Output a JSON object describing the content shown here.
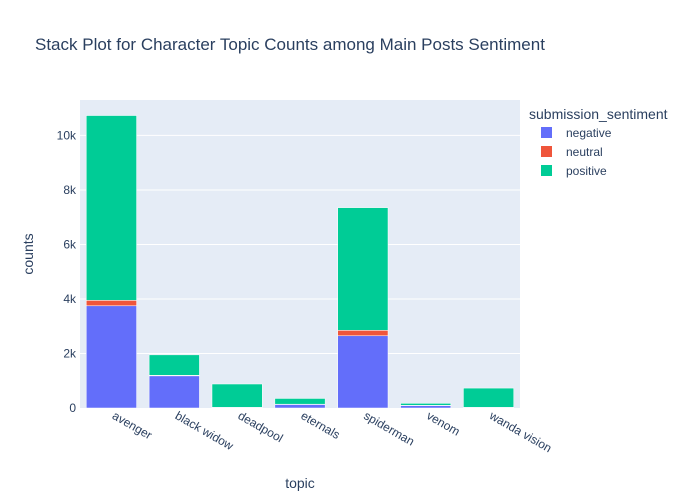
{
  "chart_data": {
    "type": "bar",
    "stacked": true,
    "title": "Stack Plot for Character Topic Counts among Main Posts Sentiment",
    "xlabel": "topic",
    "ylabel": "counts",
    "categories": [
      "avenger",
      "black widow",
      "deadpool",
      "eternals",
      "spiderman",
      "venom",
      "wanda vision"
    ],
    "ylim": [
      0,
      11300
    ],
    "yticks": [
      0,
      2000,
      4000,
      6000,
      8000,
      10000
    ],
    "yticklabels": [
      "0",
      "2k",
      "4k",
      "6k",
      "8k",
      "10k"
    ],
    "grid": true,
    "legend_title": "submission_sentiment",
    "legend_position": "top-right",
    "plot_background": "#E5ECF6",
    "series": [
      {
        "name": "negative",
        "color": "#636EFA",
        "values": [
          3750,
          1180,
          20,
          130,
          2650,
          90,
          20
        ]
      },
      {
        "name": "neutral",
        "color": "#EF553B",
        "values": [
          200,
          20,
          5,
          10,
          200,
          10,
          5
        ]
      },
      {
        "name": "positive",
        "color": "#00CC96",
        "values": [
          6780,
          750,
          855,
          210,
          4500,
          70,
          705
        ]
      }
    ]
  }
}
